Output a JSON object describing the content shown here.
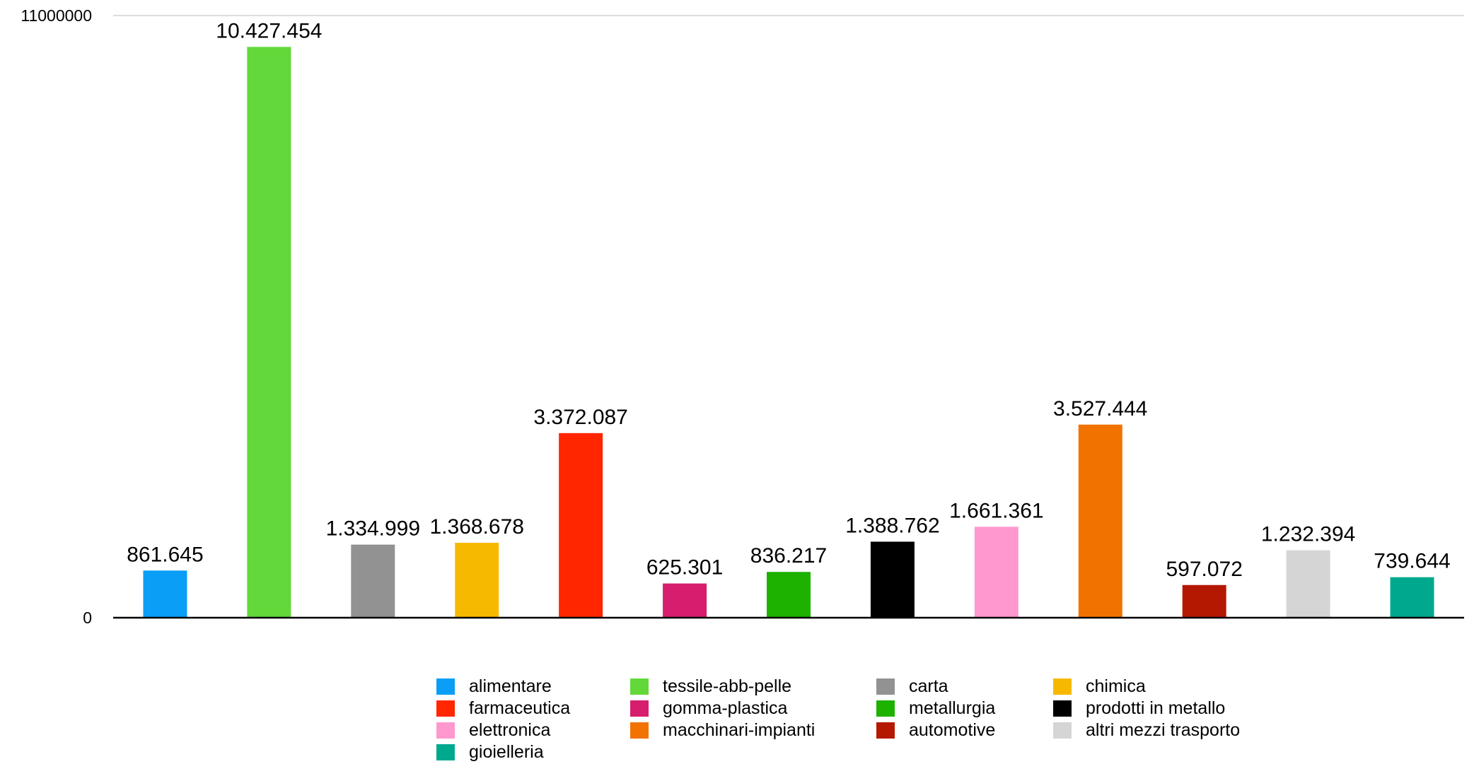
{
  "chart_data": {
    "type": "bar",
    "categories": [
      "alimentare",
      "tessile-abb-pelle",
      "carta",
      "chimica",
      "farmaceutica",
      "gomma-plastica",
      "metallurgia",
      "prodotti in metallo",
      "elettronica",
      "macchinari-impianti",
      "automotive",
      "altri mezzi trasporto",
      "gioielleria"
    ],
    "values": [
      861645,
      10427454,
      1334999,
      1368678,
      3372087,
      625301,
      836217,
      1388762,
      1661361,
      3527444,
      597072,
      1232394,
      739644
    ],
    "value_labels": [
      "861.645",
      "10.427.454",
      "1.334.999",
      "1.368.678",
      "3.372.087",
      "625.301",
      "836.217",
      "1.388.762",
      "1.661.361",
      "3.527.444",
      "597.072",
      "1.232.394",
      "739.644"
    ],
    "colors": [
      "#0B9EF6",
      "#62D83A",
      "#929292",
      "#F7B900",
      "#FF2600",
      "#D61D6E",
      "#1DB100",
      "#000000",
      "#FF98CE",
      "#F27200",
      "#B51800",
      "#D5D5D5",
      "#00A98E"
    ],
    "ylim": [
      0,
      11000000
    ],
    "yticks": [
      0,
      11000000
    ],
    "ytick_labels": [
      "0",
      "11000000"
    ],
    "title": "",
    "xlabel": "",
    "ylabel": "",
    "grid": true,
    "legend_position": "bottom"
  }
}
